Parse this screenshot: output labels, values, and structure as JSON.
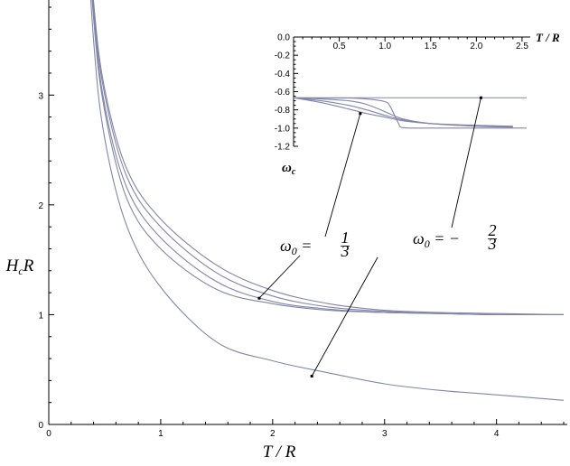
{
  "chart_data": [
    {
      "type": "line",
      "xlabel": "T/R",
      "ylabel": "H_c R",
      "xlim": [
        0,
        4.6
      ],
      "ylim": [
        0,
        3.8
      ],
      "x_ticks": [
        "0",
        "1",
        "2",
        "3",
        "4"
      ],
      "y_ticks": [
        "0",
        "1",
        "2",
        "3"
      ],
      "grid": false,
      "series": [
        {
          "x": [
            0.3,
            0.4,
            0.5,
            0.7,
            1,
            1.5,
            2,
            2.5,
            3,
            3.5,
            4,
            4.6
          ],
          "values": [
            5.2,
            3.5,
            2.6,
            1.8,
            1.25,
            0.75,
            0.58,
            0.47,
            0.37,
            0.31,
            0.27,
            0.22
          ]
        },
        {
          "x": [
            0.3,
            0.4,
            0.5,
            0.7,
            1,
            1.5,
            2,
            2.5,
            3,
            3.5,
            4,
            4.6
          ],
          "values": [
            5.3,
            3.7,
            2.85,
            2.05,
            1.6,
            1.23,
            1.1,
            1.04,
            1.02,
            1.01,
            1.0,
            1.0
          ]
        },
        {
          "x": [
            0.3,
            0.4,
            0.5,
            0.7,
            1,
            1.5,
            2,
            2.5,
            3,
            3.5,
            4,
            4.6
          ],
          "values": [
            5.3,
            3.75,
            2.9,
            2.15,
            1.7,
            1.3,
            1.12,
            1.05,
            1.02,
            1.01,
            1.0,
            1.0
          ]
        },
        {
          "x": [
            0.3,
            0.4,
            0.5,
            0.7,
            1,
            1.5,
            2,
            2.5,
            3,
            3.5,
            4,
            4.6
          ],
          "values": [
            5.3,
            3.8,
            3.0,
            2.25,
            1.8,
            1.38,
            1.17,
            1.07,
            1.03,
            1.01,
            1.0,
            1.0
          ]
        },
        {
          "x": [
            0.3,
            0.4,
            0.5,
            0.7,
            1,
            1.5,
            2,
            2.5,
            3,
            3.5,
            4,
            4.6
          ],
          "values": [
            5.3,
            3.85,
            3.05,
            2.32,
            1.87,
            1.45,
            1.22,
            1.1,
            1.04,
            1.02,
            1.01,
            1.0
          ]
        }
      ],
      "annotations": [
        {
          "text": "ω₀ = 1/3",
          "target": [
            1.88,
            1.15
          ]
        },
        {
          "text": "ω₀ = −2/3",
          "target": [
            2.35,
            0.44
          ]
        }
      ]
    },
    {
      "type": "line",
      "xlabel": "T/R",
      "ylabel": "ω_c",
      "xlim": [
        0,
        2.55
      ],
      "ylim": [
        -1.2,
        0.0
      ],
      "x_ticks": [
        "0.5",
        "1.0",
        "1.5",
        "2.0",
        "2.5"
      ],
      "y_ticks": [
        "0.0",
        "-0.2",
        "-0.4",
        "-0.6",
        "-0.8",
        "-1.0",
        "-1.2"
      ],
      "grid": false,
      "series": [
        {
          "x": [
            0,
            2.55
          ],
          "values": [
            -0.667,
            -0.667
          ]
        },
        {
          "x": [
            0,
            0.3,
            0.6,
            0.8,
            1.0,
            1.05,
            1.1,
            1.15,
            1.2,
            1.5,
            2.0,
            2.55
          ],
          "values": [
            -0.667,
            -0.67,
            -0.67,
            -0.68,
            -0.71,
            -0.75,
            -0.85,
            -0.95,
            -0.995,
            -1.0,
            -1.0,
            -1.0
          ]
        },
        {
          "x": [
            0,
            0.3,
            0.6,
            0.8,
            1.0,
            1.2,
            1.5,
            2.0,
            2.4
          ],
          "values": [
            -0.667,
            -0.68,
            -0.7,
            -0.74,
            -0.82,
            -0.9,
            -0.95,
            -0.98,
            -0.99
          ]
        },
        {
          "x": [
            0,
            0.3,
            0.6,
            0.8,
            1.0,
            1.2,
            1.5,
            2.0,
            2.4
          ],
          "values": [
            -0.667,
            -0.7,
            -0.75,
            -0.8,
            -0.86,
            -0.91,
            -0.95,
            -0.975,
            -0.985
          ]
        },
        {
          "x": [
            0,
            0.3,
            0.6,
            0.8,
            1.0,
            1.2,
            1.5,
            2.0,
            2.4
          ],
          "values": [
            -0.667,
            -0.72,
            -0.79,
            -0.84,
            -0.88,
            -0.92,
            -0.95,
            -0.97,
            -0.98
          ]
        }
      ],
      "annotations": [
        {
          "text": "ω₀ = 1/3",
          "target": [
            0.73,
            -0.84
          ]
        },
        {
          "text": "ω₀ = −2/3",
          "target": [
            2.05,
            -0.667
          ]
        }
      ]
    }
  ]
}
